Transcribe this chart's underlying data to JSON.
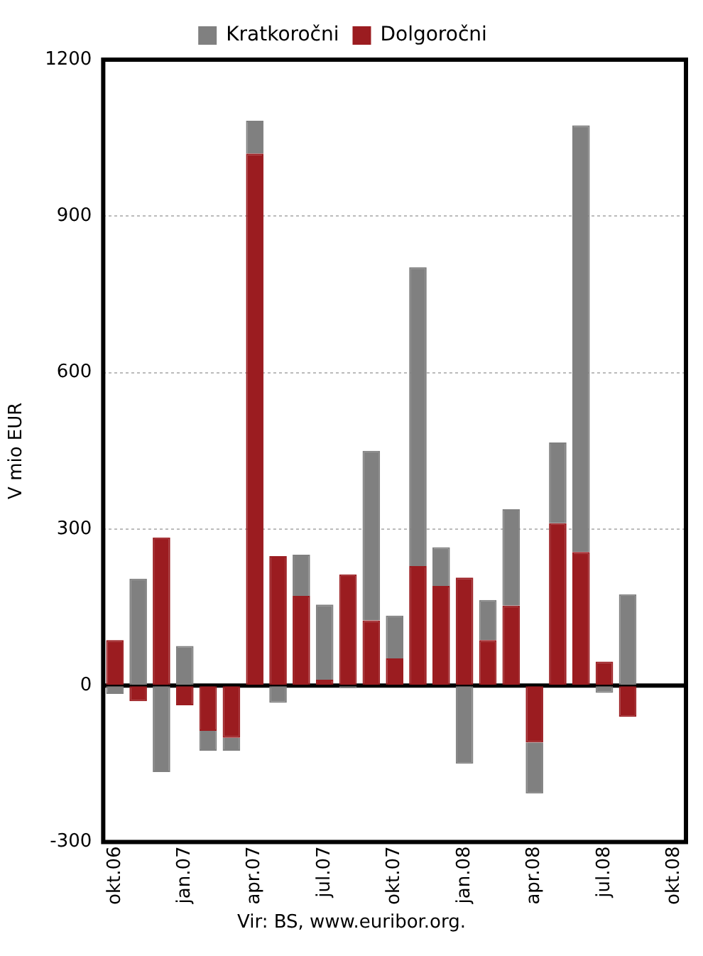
{
  "chart_data": {
    "type": "bar",
    "stacked": true,
    "ylabel": "V mio EUR",
    "categories": [
      "okt.06",
      null,
      null,
      "jan.07",
      null,
      null,
      "apr.07",
      null,
      null,
      "jul.07",
      null,
      null,
      "okt.07",
      null,
      null,
      "jan.08",
      null,
      null,
      "apr.08",
      null,
      null,
      "jul.08",
      null,
      null,
      "okt.08"
    ],
    "series": [
      {
        "name": "Dolgoročni",
        "color": "#9b1c20",
        "values": [
          87,
          -30,
          284,
          -38,
          -87,
          -100,
          1020,
          248,
          172,
          11,
          213,
          125,
          52,
          229,
          191,
          207,
          87,
          153,
          -109,
          311,
          256,
          46,
          -60,
          null,
          null
        ]
      },
      {
        "name": "Kratkoročni",
        "color": "#808080",
        "values": [
          -16,
          205,
          -166,
          76,
          -38,
          -25,
          63,
          -33,
          79,
          144,
          -5,
          325,
          82,
          573,
          74,
          -150,
          77,
          185,
          -98,
          155,
          818,
          -14,
          175,
          null,
          null
        ]
      }
    ],
    "ylim": [
      -300,
      1200
    ],
    "yticks": [
      -300,
      0,
      300,
      600,
      900,
      1200
    ],
    "grid": "y",
    "legend": "top",
    "annotations": [
      "Vir: BS, www.euribor.org."
    ]
  }
}
